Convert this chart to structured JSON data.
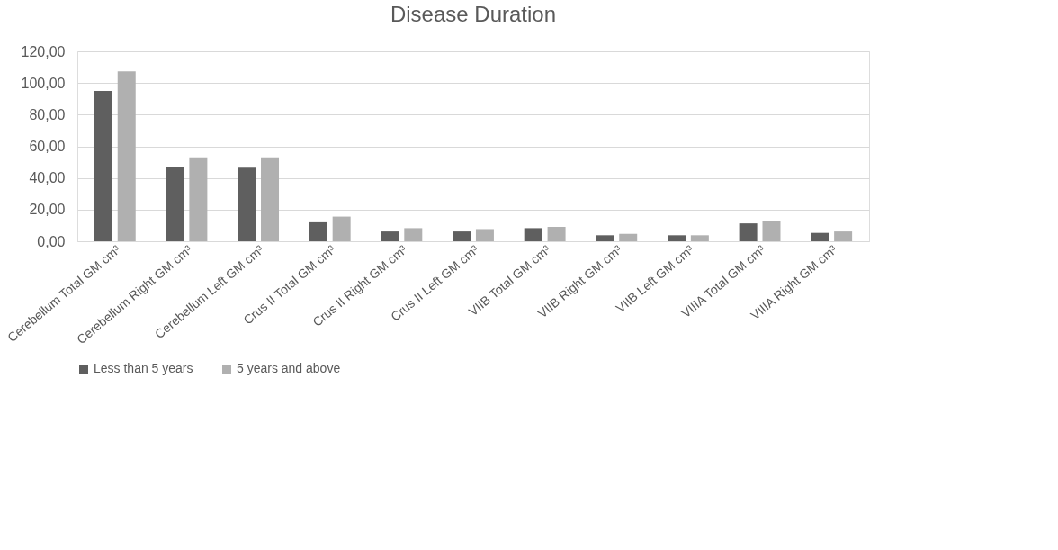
{
  "chart_data": {
    "type": "bar",
    "title": "Disease Duration",
    "categories": [
      "Cerebellum Total GM cm³",
      "Cerebellum Right GM cm³",
      "Cerebellum Left GM cm³",
      "Crus II Total GM cm³",
      "Crus II Right GM cm³",
      "Crus II Left GM cm³",
      "VIIB Total GM cm³",
      "VIIB Right GM cm³",
      "VIIB Left GM cm³",
      "VIIIA Total GM cm³",
      "VIIIA Right GM cm³"
    ],
    "series": [
      {
        "name": "Less than 5 years",
        "color": "#5f5f5f",
        "values": [
          95,
          47.2,
          46.5,
          12,
          6.2,
          6.2,
          8.3,
          3.8,
          3.8,
          11.3,
          5.3
        ]
      },
      {
        "name": "5 years and above",
        "color": "#b0b0b0",
        "values": [
          107.3,
          53,
          53,
          15.6,
          8.3,
          7.7,
          9.1,
          4.7,
          3.8,
          12.8,
          6.2
        ]
      }
    ],
    "ylim": [
      0,
      120
    ],
    "yticks": [
      {
        "value": 0,
        "label": "0,00"
      },
      {
        "value": 20,
        "label": "20,00"
      },
      {
        "value": 40,
        "label": "40,00"
      },
      {
        "value": 60,
        "label": "60,00"
      },
      {
        "value": 80,
        "label": "80,00"
      },
      {
        "value": 100,
        "label": "100,00"
      },
      {
        "value": 120,
        "label": "120,00"
      }
    ],
    "grid": "y",
    "legend": "bottom"
  }
}
